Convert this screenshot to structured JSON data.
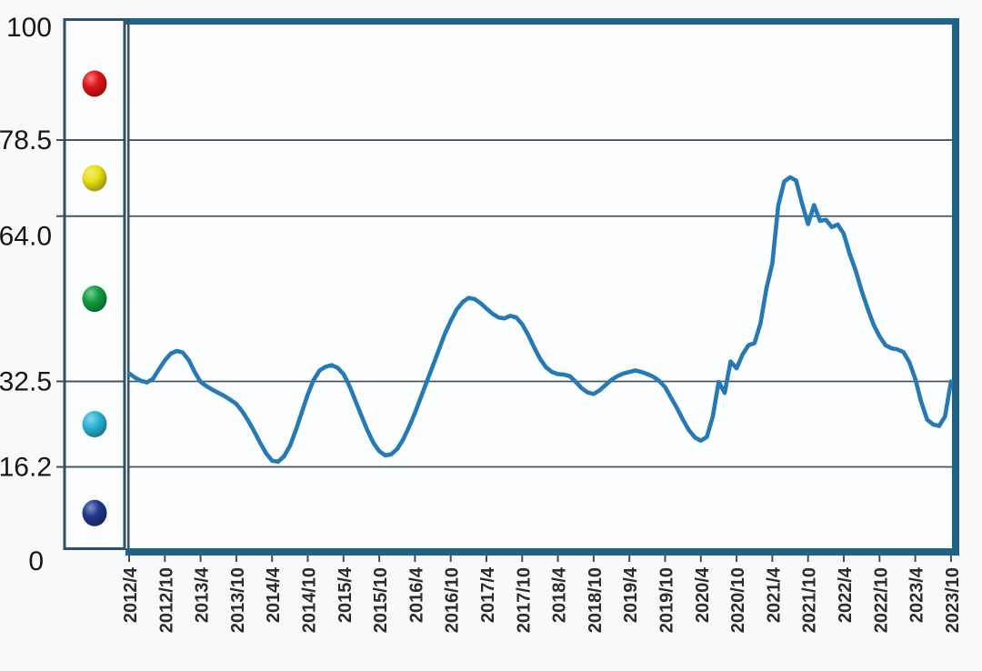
{
  "page": {
    "background": "#f7f9fa",
    "plot_background": "#fdfeff"
  },
  "chart_data": {
    "type": "line",
    "title": "",
    "xlabel": "",
    "ylabel": "",
    "ylim": [
      0,
      100
    ],
    "grid": true,
    "gridline_values": [
      78.5,
      64.0,
      32.5,
      16.2
    ],
    "y_ticks": [
      {
        "label": "100",
        "value": 100
      },
      {
        "label": "78.5",
        "value": 78.5
      },
      {
        "label": "64.0",
        "value": 64.0
      },
      {
        "label": "32.5",
        "value": 32.5
      },
      {
        "label": "16.2",
        "value": 16.2
      },
      {
        "label": "0",
        "value": 0
      }
    ],
    "x_tick_labels": [
      "2012/4",
      "2012/10",
      "2013/4",
      "2013/10",
      "2014/4",
      "2014/10",
      "2015/4",
      "2015/10",
      "2016/4",
      "2016/10",
      "2017/4",
      "2017/10",
      "2018/4",
      "2018/10",
      "2019/4",
      "2019/10",
      "2020/4",
      "2020/10",
      "2021/4",
      "2021/10",
      "2022/4",
      "2022/10",
      "2023/4",
      "2023/10"
    ],
    "x_start": "2012/4",
    "x_end": "2023/10",
    "frequency": "monthly",
    "series": [
      {
        "name": "index-line",
        "color": "#2579b5",
        "values": [
          34.0,
          33.2,
          32.6,
          32.3,
          33.0,
          34.8,
          36.5,
          37.8,
          38.3,
          38.0,
          36.6,
          34.3,
          32.4,
          31.6,
          30.9,
          30.3,
          29.7,
          29.0,
          28.2,
          26.8,
          25.0,
          23.0,
          20.8,
          18.8,
          17.4,
          17.2,
          18.2,
          20.2,
          23.2,
          26.6,
          30.0,
          32.8,
          34.6,
          35.3,
          35.6,
          35.1,
          33.9,
          31.6,
          28.8,
          26.0,
          23.2,
          20.8,
          19.2,
          18.4,
          18.6,
          19.6,
          21.4,
          23.8,
          26.5,
          29.5,
          32.5,
          35.5,
          38.5,
          41.5,
          44.0,
          46.2,
          47.6,
          48.4,
          48.2,
          47.4,
          46.4,
          45.4,
          44.7,
          44.5,
          45.0,
          44.7,
          43.4,
          41.4,
          39.0,
          36.8,
          35.2,
          34.3,
          33.9,
          33.8,
          33.5,
          32.4,
          31.2,
          30.4,
          30.1,
          30.8,
          31.8,
          32.8,
          33.5,
          34.0,
          34.3,
          34.6,
          34.3,
          33.9,
          33.4,
          32.6,
          31.4,
          29.4,
          27.4,
          25.2,
          23.2,
          21.8,
          21.2,
          21.9,
          25.8,
          32.4,
          30.3,
          36.3,
          35.0,
          37.6,
          39.4,
          39.8,
          43.5,
          50.2,
          55.0,
          66.0,
          70.6,
          71.4,
          70.8,
          66.4,
          62.5,
          66.1,
          63.1,
          63.3,
          61.9,
          62.4,
          60.6,
          56.8,
          53.6,
          49.8,
          46.4,
          43.3,
          41.1,
          39.4,
          38.8,
          38.6,
          38.1,
          36.2,
          33.0,
          28.6,
          25.2,
          24.3,
          24.0,
          25.8,
          32.5
        ]
      }
    ],
    "legend_position": "left-column",
    "zones": [
      {
        "name": "red-ball",
        "color": "#e01319",
        "from": 78.5,
        "to": 100
      },
      {
        "name": "yellow-ball",
        "color": "#e8e112",
        "from": 64.0,
        "to": 78.5
      },
      {
        "name": "green-ball",
        "color": "#0f9e3d",
        "from": 32.5,
        "to": 64.0
      },
      {
        "name": "light-blue-ball",
        "color": "#29b4d6",
        "from": 16.2,
        "to": 32.5
      },
      {
        "name": "dark-blue-ball",
        "color": "#20398e",
        "from": 0,
        "to": 16.2
      }
    ],
    "colors": {
      "line": "#2579b5",
      "gridline": "#45565c",
      "frame": "#1e6386",
      "column_border": "#2f5168",
      "axis": "#3a505a",
      "y_label": "#161616",
      "x_label": "#2b2b2b"
    }
  }
}
